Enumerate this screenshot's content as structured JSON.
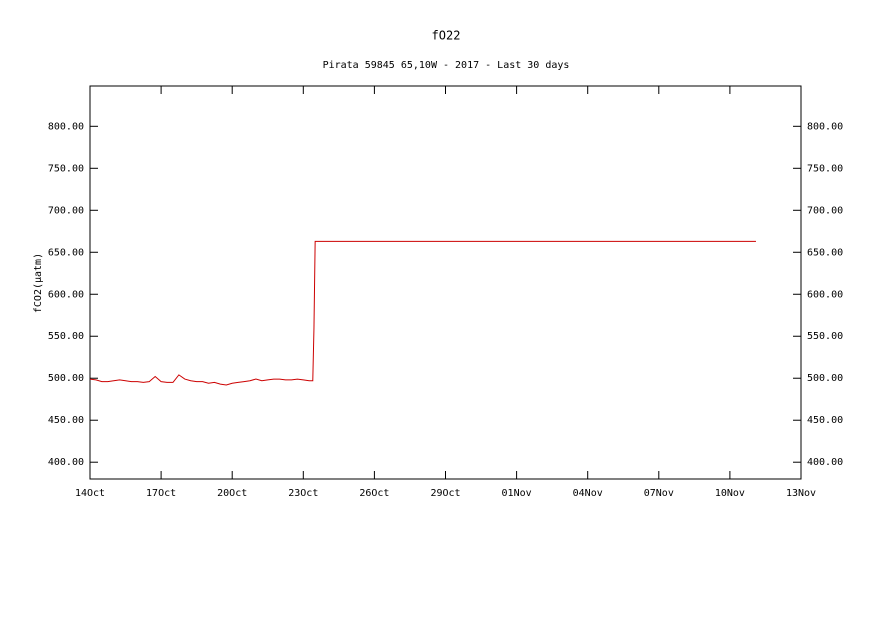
{
  "chart_data": {
    "type": "line",
    "title": "fO22",
    "subtitle": "Pirata 59845 65,10W - 2017 - Last 30 days",
    "y_label": "fCO2(μatm)",
    "x": [
      0,
      0.25,
      0.5,
      0.75,
      1,
      1.25,
      1.5,
      1.75,
      2,
      2.25,
      2.5,
      2.75,
      3,
      3.25,
      3.5,
      3.75,
      4,
      4.25,
      4.5,
      4.75,
      5,
      5.25,
      5.5,
      5.75,
      6,
      6.25,
      6.5,
      6.75,
      7,
      7.25,
      7.5,
      7.75,
      8,
      8.25,
      8.5,
      8.75,
      9,
      9.25,
      9.4,
      9.45,
      9.5,
      28.1
    ],
    "series": [
      {
        "name": "fCO2",
        "color": "#cc0000",
        "values": [
          499,
          498,
          496,
          496,
          497,
          498,
          497,
          496,
          496,
          495,
          496,
          502,
          496,
          495,
          495,
          504,
          499,
          497,
          496,
          496,
          494,
          495,
          493,
          492,
          494,
          495,
          496,
          497,
          499,
          497,
          498,
          499,
          499,
          498,
          498,
          499,
          498,
          497,
          497,
          560,
          663,
          663
        ]
      }
    ],
    "xlim": [
      0,
      30
    ],
    "xticks": [
      {
        "value": 0,
        "label": "14Oct"
      },
      {
        "value": 3,
        "label": "17Oct"
      },
      {
        "value": 6,
        "label": "20Oct"
      },
      {
        "value": 9,
        "label": "23Oct"
      },
      {
        "value": 12,
        "label": "26Oct"
      },
      {
        "value": 15,
        "label": "29Oct"
      },
      {
        "value": 18,
        "label": "01Nov"
      },
      {
        "value": 21,
        "label": "04Nov"
      },
      {
        "value": 24,
        "label": "07Nov"
      },
      {
        "value": 27,
        "label": "10Nov"
      },
      {
        "value": 30,
        "label": "13Nov"
      }
    ],
    "ylim": [
      380,
      848
    ],
    "yticks": [
      {
        "value": 400,
        "label": "400.00"
      },
      {
        "value": 450,
        "label": "450.00"
      },
      {
        "value": 500,
        "label": "500.00"
      },
      {
        "value": 550,
        "label": "550.00"
      },
      {
        "value": 600,
        "label": "600.00"
      },
      {
        "value": 650,
        "label": "650.00"
      },
      {
        "value": 700,
        "label": "700.00"
      },
      {
        "value": 750,
        "label": "750.00"
      },
      {
        "value": 800,
        "label": "800.00"
      }
    ]
  }
}
